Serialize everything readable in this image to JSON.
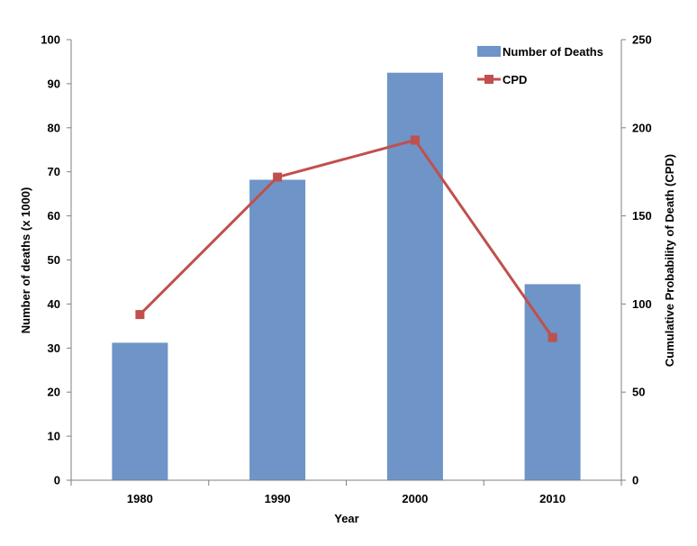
{
  "chart_data": {
    "type": "bar",
    "categories": [
      "1980",
      "1990",
      "2000",
      "2010"
    ],
    "series": [
      {
        "name": "Number of Deaths",
        "type": "bar",
        "axis": "left",
        "color": "#6E94C8",
        "values": [
          31.2,
          68.2,
          92.5,
          44.5
        ]
      },
      {
        "name": "CPD",
        "type": "line",
        "axis": "right",
        "color": "#C0504D",
        "marker": "square",
        "values": [
          94,
          172,
          193,
          81
        ]
      }
    ],
    "xlabel": "Year",
    "ylabel": "Number of deaths (x 1000)",
    "y2label": "Cumulative Probability of Death (CPD)",
    "ylim": [
      0,
      100
    ],
    "y2lim": [
      0,
      250
    ],
    "yticks": [
      "0",
      "10",
      "20",
      "30",
      "40",
      "50",
      "60",
      "70",
      "80",
      "90",
      "100"
    ],
    "y2ticks": [
      "0",
      "50",
      "100",
      "150",
      "200",
      "250"
    ],
    "grid": false,
    "legend_position": "top-right"
  }
}
